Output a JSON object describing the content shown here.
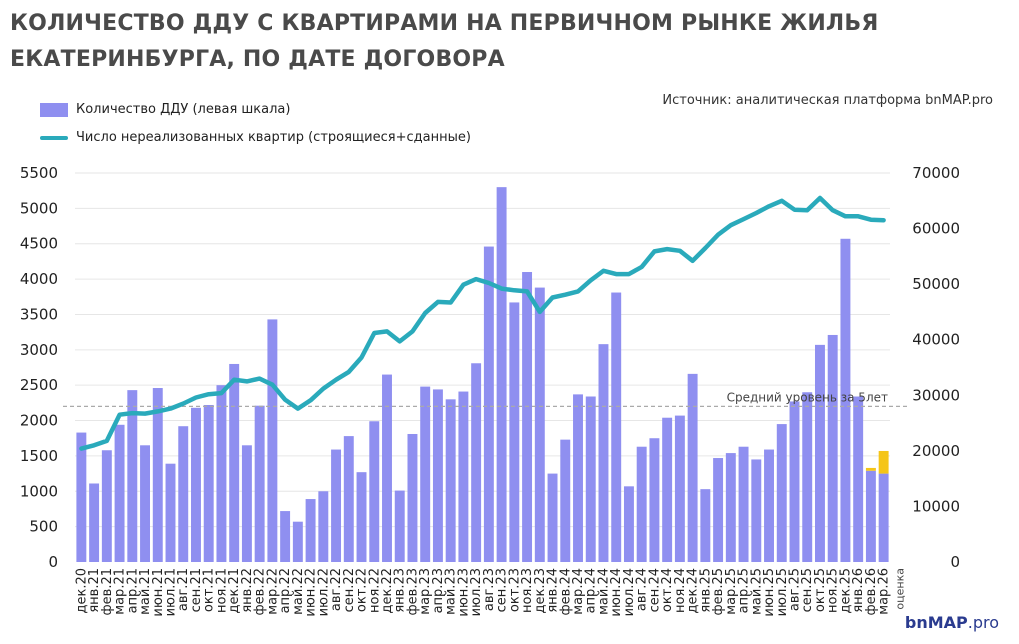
{
  "title_line1": "КОЛИЧЕСТВО ДДУ С КВАРТИРАМИ НА ПЕРВИЧНОМ РЫНКЕ ЖИЛЬЯ",
  "title_line2": "ЕКАТЕРИНБУРГА, ПО ДАТЕ ДОГОВОРА",
  "source": "Источник: аналитическая платформа bnMAP.pro",
  "brand": "bnMAP",
  "brand_suffix": ".pro",
  "colors": {
    "bars": "#8f8ff0",
    "estimate": "#f5c518",
    "line": "#2aaabb",
    "avg_line": "#aaaaaa"
  },
  "chart_data": {
    "type": "bar+line",
    "categories": [
      "дек.20",
      "янв.21",
      "фев.21",
      "мар.21",
      "апр.21",
      "май.21",
      "июн.21",
      "июл.21",
      "авг.21",
      "сен.21",
      "окт.21",
      "ноя.21",
      "дек.21",
      "янв.22",
      "фев.22",
      "мар.22",
      "апр.22",
      "май.22",
      "июн.22",
      "июл.22",
      "авг.22",
      "сен.22",
      "окт.22",
      "ноя.22",
      "дек.22",
      "янв.23",
      "фев.23",
      "мар.23",
      "апр.23",
      "май.23",
      "июн.23",
      "июл.23",
      "авг.23",
      "сен.23",
      "окт.23",
      "ноя.23",
      "дек.23",
      "янв.24",
      "фев.24",
      "мар.24",
      "апр.24",
      "май.24",
      "июн.24",
      "июл.24",
      "авг.24",
      "сен.24",
      "окт.24",
      "ноя.24",
      "дек.24",
      "янв.25",
      "фев.25",
      "мар.25",
      "апр.25",
      "май.25",
      "июн.25",
      "июл.25",
      "авг.25",
      "сен.25",
      "окт.25",
      "ноя.25",
      "дек.25",
      "янв.26",
      "фев.26",
      "мар.26"
    ],
    "estimate_label": "оценка",
    "series": [
      {
        "name": "Количество ДДУ (левая шкала)",
        "type": "bar",
        "axis": "left",
        "values": [
          1830,
          1110,
          1580,
          1940,
          2430,
          1650,
          2460,
          1390,
          1920,
          2180,
          2220,
          2500,
          2800,
          1650,
          2210,
          3430,
          720,
          570,
          890,
          1000,
          1590,
          1780,
          1270,
          1990,
          2650,
          1010,
          1810,
          2480,
          2440,
          2300,
          2410,
          2810,
          4460,
          5300,
          3670,
          4100,
          3880,
          1250,
          1730,
          2370,
          2340,
          3080,
          3810,
          1070,
          1630,
          1750,
          2040,
          2070,
          2660,
          1030,
          1470,
          1540,
          1630,
          1450,
          1590,
          1950,
          2270,
          2400,
          3070,
          3210,
          4570,
          2340,
          1290,
          1250
        ],
        "estimate_addon": [
          0,
          0,
          0,
          0,
          0,
          0,
          0,
          0,
          0,
          0,
          0,
          0,
          0,
          0,
          0,
          0,
          0,
          0,
          0,
          0,
          0,
          0,
          0,
          0,
          0,
          0,
          0,
          0,
          0,
          0,
          0,
          0,
          0,
          0,
          0,
          0,
          0,
          0,
          0,
          0,
          0,
          0,
          0,
          0,
          0,
          0,
          0,
          0,
          0,
          0,
          0,
          0,
          0,
          0,
          0,
          0,
          0,
          0,
          0,
          0,
          0,
          0,
          40,
          320
        ]
      },
      {
        "name": "Число нереализованных квартир (строящиеся+сданные)",
        "type": "line",
        "axis": "right",
        "values": [
          20400,
          21000,
          21800,
          26500,
          26800,
          26700,
          27100,
          27600,
          28500,
          29600,
          30200,
          30400,
          32800,
          32500,
          33000,
          31900,
          29200,
          27600,
          29100,
          31200,
          32800,
          34200,
          36800,
          41200,
          41500,
          39700,
          41500,
          44800,
          46800,
          46700,
          49900,
          50900,
          50200,
          49200,
          48900,
          48700,
          45000,
          47600,
          48100,
          48700,
          50700,
          52400,
          51800,
          51800,
          53100,
          55900,
          56300,
          56000,
          54200,
          56500,
          58900,
          60600,
          61700,
          62800,
          64000,
          65000,
          63400,
          63300,
          65500,
          63300,
          62200,
          62200,
          61600,
          61500
        ]
      }
    ],
    "left_axis": {
      "min": 0,
      "max": 5500,
      "step": 500,
      "ticks": [
        "0",
        "500",
        "1000",
        "1500",
        "2000",
        "2500",
        "3000",
        "3500",
        "4000",
        "4500",
        "5000",
        "5500"
      ]
    },
    "right_axis": {
      "min": 0,
      "max": 70000,
      "step": 10000,
      "ticks": [
        "0",
        "10000",
        "20000",
        "30000",
        "40000",
        "50000",
        "60000",
        "70000"
      ]
    },
    "reference_line": {
      "label": "Средний уровень за 5лет",
      "value": 2200,
      "axis": "left"
    },
    "grid": true,
    "legend_position": "top-left"
  }
}
